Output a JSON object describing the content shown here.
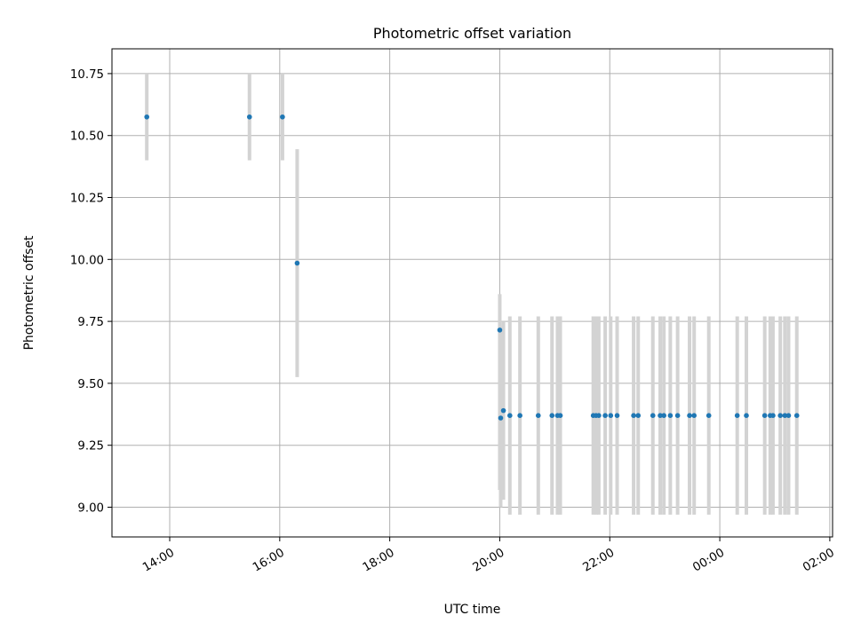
{
  "chart_data": {
    "type": "scatter",
    "title": "Photometric offset variation",
    "xlabel": "UTC time",
    "ylabel": "Photometric offset",
    "grid": true,
    "xlim_hours": [
      12.95,
      26.05
    ],
    "ylim": [
      8.88,
      10.85
    ],
    "x_ticks": [
      {
        "h": 14,
        "label": "14:00"
      },
      {
        "h": 16,
        "label": "16:00"
      },
      {
        "h": 18,
        "label": "18:00"
      },
      {
        "h": 20,
        "label": "20:00"
      },
      {
        "h": 22,
        "label": "22:00"
      },
      {
        "h": 24,
        "label": "00:00"
      },
      {
        "h": 26,
        "label": "02:00"
      }
    ],
    "y_ticks": [
      {
        "v": 9.0,
        "label": "9.00"
      },
      {
        "v": 9.25,
        "label": "9.25"
      },
      {
        "v": 9.5,
        "label": "9.50"
      },
      {
        "v": 9.75,
        "label": "9.75"
      },
      {
        "v": 10.0,
        "label": "10.00"
      },
      {
        "v": 10.25,
        "label": "10.25"
      },
      {
        "v": 10.5,
        "label": "10.50"
      },
      {
        "v": 10.75,
        "label": "10.75"
      }
    ],
    "colors": {
      "point": "#1f77b4",
      "errorbar": "#d3d3d3",
      "grid": "#b0b0b0"
    },
    "points": [
      {
        "t": "13:35",
        "y": 10.575,
        "lo": 10.4,
        "hi": 10.75
      },
      {
        "t": "15:27",
        "y": 10.575,
        "lo": 10.4,
        "hi": 10.75
      },
      {
        "t": "16:03",
        "y": 10.575,
        "lo": 10.4,
        "hi": 10.75
      },
      {
        "t": "16:19",
        "y": 9.985,
        "lo": 9.525,
        "hi": 10.445
      },
      {
        "t": "20:00",
        "y": 9.715,
        "lo": 9.07,
        "hi": 9.86
      },
      {
        "t": "20:01",
        "y": 9.36,
        "lo": 9.0,
        "hi": 9.73
      },
      {
        "t": "20:04",
        "y": 9.39,
        "lo": 9.03,
        "hi": 9.75
      },
      {
        "t": "20:11",
        "y": 9.37,
        "lo": 8.97,
        "hi": 9.77
      },
      {
        "t": "20:22",
        "y": 9.37,
        "lo": 8.97,
        "hi": 9.77
      },
      {
        "t": "20:42",
        "y": 9.37,
        "lo": 8.97,
        "hi": 9.77
      },
      {
        "t": "20:57",
        "y": 9.37,
        "lo": 8.97,
        "hi": 9.77
      },
      {
        "t": "21:03",
        "y": 9.37,
        "lo": 8.97,
        "hi": 9.77
      },
      {
        "t": "21:06",
        "y": 9.37,
        "lo": 8.97,
        "hi": 9.77
      },
      {
        "t": "21:42",
        "y": 9.37,
        "lo": 8.97,
        "hi": 9.77
      },
      {
        "t": "21:45",
        "y": 9.37,
        "lo": 8.97,
        "hi": 9.77
      },
      {
        "t": "21:48",
        "y": 9.37,
        "lo": 8.97,
        "hi": 9.77
      },
      {
        "t": "21:55",
        "y": 9.37,
        "lo": 8.97,
        "hi": 9.77
      },
      {
        "t": "22:01",
        "y": 9.37,
        "lo": 8.97,
        "hi": 9.77
      },
      {
        "t": "22:08",
        "y": 9.37,
        "lo": 8.97,
        "hi": 9.77
      },
      {
        "t": "22:26",
        "y": 9.37,
        "lo": 8.97,
        "hi": 9.77
      },
      {
        "t": "22:31",
        "y": 9.37,
        "lo": 8.97,
        "hi": 9.77
      },
      {
        "t": "22:47",
        "y": 9.37,
        "lo": 8.97,
        "hi": 9.77
      },
      {
        "t": "22:55",
        "y": 9.37,
        "lo": 8.97,
        "hi": 9.77
      },
      {
        "t": "22:59",
        "y": 9.37,
        "lo": 8.97,
        "hi": 9.77
      },
      {
        "t": "23:06",
        "y": 9.37,
        "lo": 8.97,
        "hi": 9.77
      },
      {
        "t": "23:14",
        "y": 9.37,
        "lo": 8.97,
        "hi": 9.77
      },
      {
        "t": "23:27",
        "y": 9.37,
        "lo": 8.97,
        "hi": 9.77
      },
      {
        "t": "23:32",
        "y": 9.37,
        "lo": 8.97,
        "hi": 9.77
      },
      {
        "t": "23:48",
        "y": 9.37,
        "lo": 8.97,
        "hi": 9.77
      },
      {
        "t": "00:19",
        "y": 9.37,
        "lo": 8.97,
        "hi": 9.77
      },
      {
        "t": "00:29",
        "y": 9.37,
        "lo": 8.97,
        "hi": 9.77
      },
      {
        "t": "00:49",
        "y": 9.37,
        "lo": 8.97,
        "hi": 9.77
      },
      {
        "t": "00:55",
        "y": 9.37,
        "lo": 8.97,
        "hi": 9.77
      },
      {
        "t": "00:58",
        "y": 9.37,
        "lo": 8.97,
        "hi": 9.77
      },
      {
        "t": "01:06",
        "y": 9.37,
        "lo": 8.97,
        "hi": 9.77
      },
      {
        "t": "01:11",
        "y": 9.37,
        "lo": 8.97,
        "hi": 9.77
      },
      {
        "t": "01:15",
        "y": 9.37,
        "lo": 8.97,
        "hi": 9.77
      },
      {
        "t": "01:24",
        "y": 9.37,
        "lo": 8.97,
        "hi": 9.77
      }
    ]
  }
}
